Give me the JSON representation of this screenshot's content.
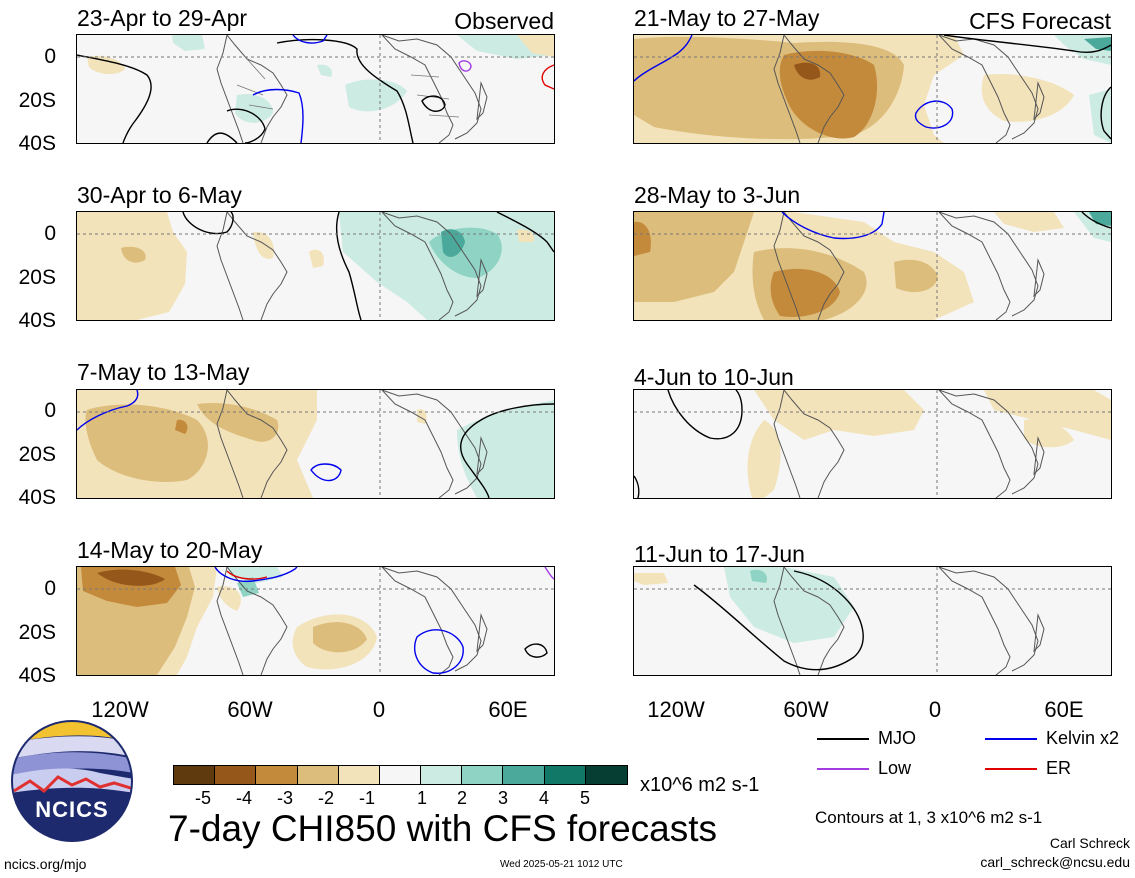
{
  "panels": [
    {
      "title": "23-Apr to 29-Apr",
      "tag": "Observed"
    },
    {
      "title": "30-Apr to 6-May",
      "tag": ""
    },
    {
      "title": "7-May to 13-May",
      "tag": ""
    },
    {
      "title": "14-May to 20-May",
      "tag": ""
    },
    {
      "title": "21-May to 27-May",
      "tag": "CFS Forecast"
    },
    {
      "title": "28-May to 3-Jun",
      "tag": ""
    },
    {
      "title": "4-Jun to 10-Jun",
      "tag": ""
    },
    {
      "title": "11-Jun to 17-Jun",
      "tag": ""
    }
  ],
  "y_ticks": [
    "0",
    "20S",
    "40S"
  ],
  "x_ticks": [
    "120W",
    "60W",
    "0",
    "60E"
  ],
  "legend": {
    "mjo": "MJO",
    "kelvin": "Kelvin x2",
    "low": "Low",
    "er": "ER",
    "colors": {
      "mjo": "#000000",
      "kelvin": "#0000ee",
      "low": "#a23be0",
      "er": "#e00000"
    }
  },
  "colorbar": {
    "colors": [
      "#5e3a0e",
      "#95571a",
      "#c48a3c",
      "#dcbd7c",
      "#f3e3bb",
      "#f6f6f6",
      "#ccebe3",
      "#8ed3c3",
      "#4aa99a",
      "#117767",
      "#073e33"
    ],
    "labels": [
      "-5",
      "-4",
      "-3",
      "-2",
      "-1",
      "1",
      "2",
      "3",
      "4",
      "5"
    ],
    "units": "x10^6 m2 s-1"
  },
  "main_title": "7-day CHI850 with CFS forecasts",
  "contour_note": "Contours at 1, 3 x10^6 m2 s-1",
  "author": "Carl Schreck",
  "email": "carl_schreck@ncsu.edu",
  "website": "ncics.org/mjo",
  "timestamp": "Wed 2025-05-21 1012 UTC",
  "logo_text": "NCICS"
}
